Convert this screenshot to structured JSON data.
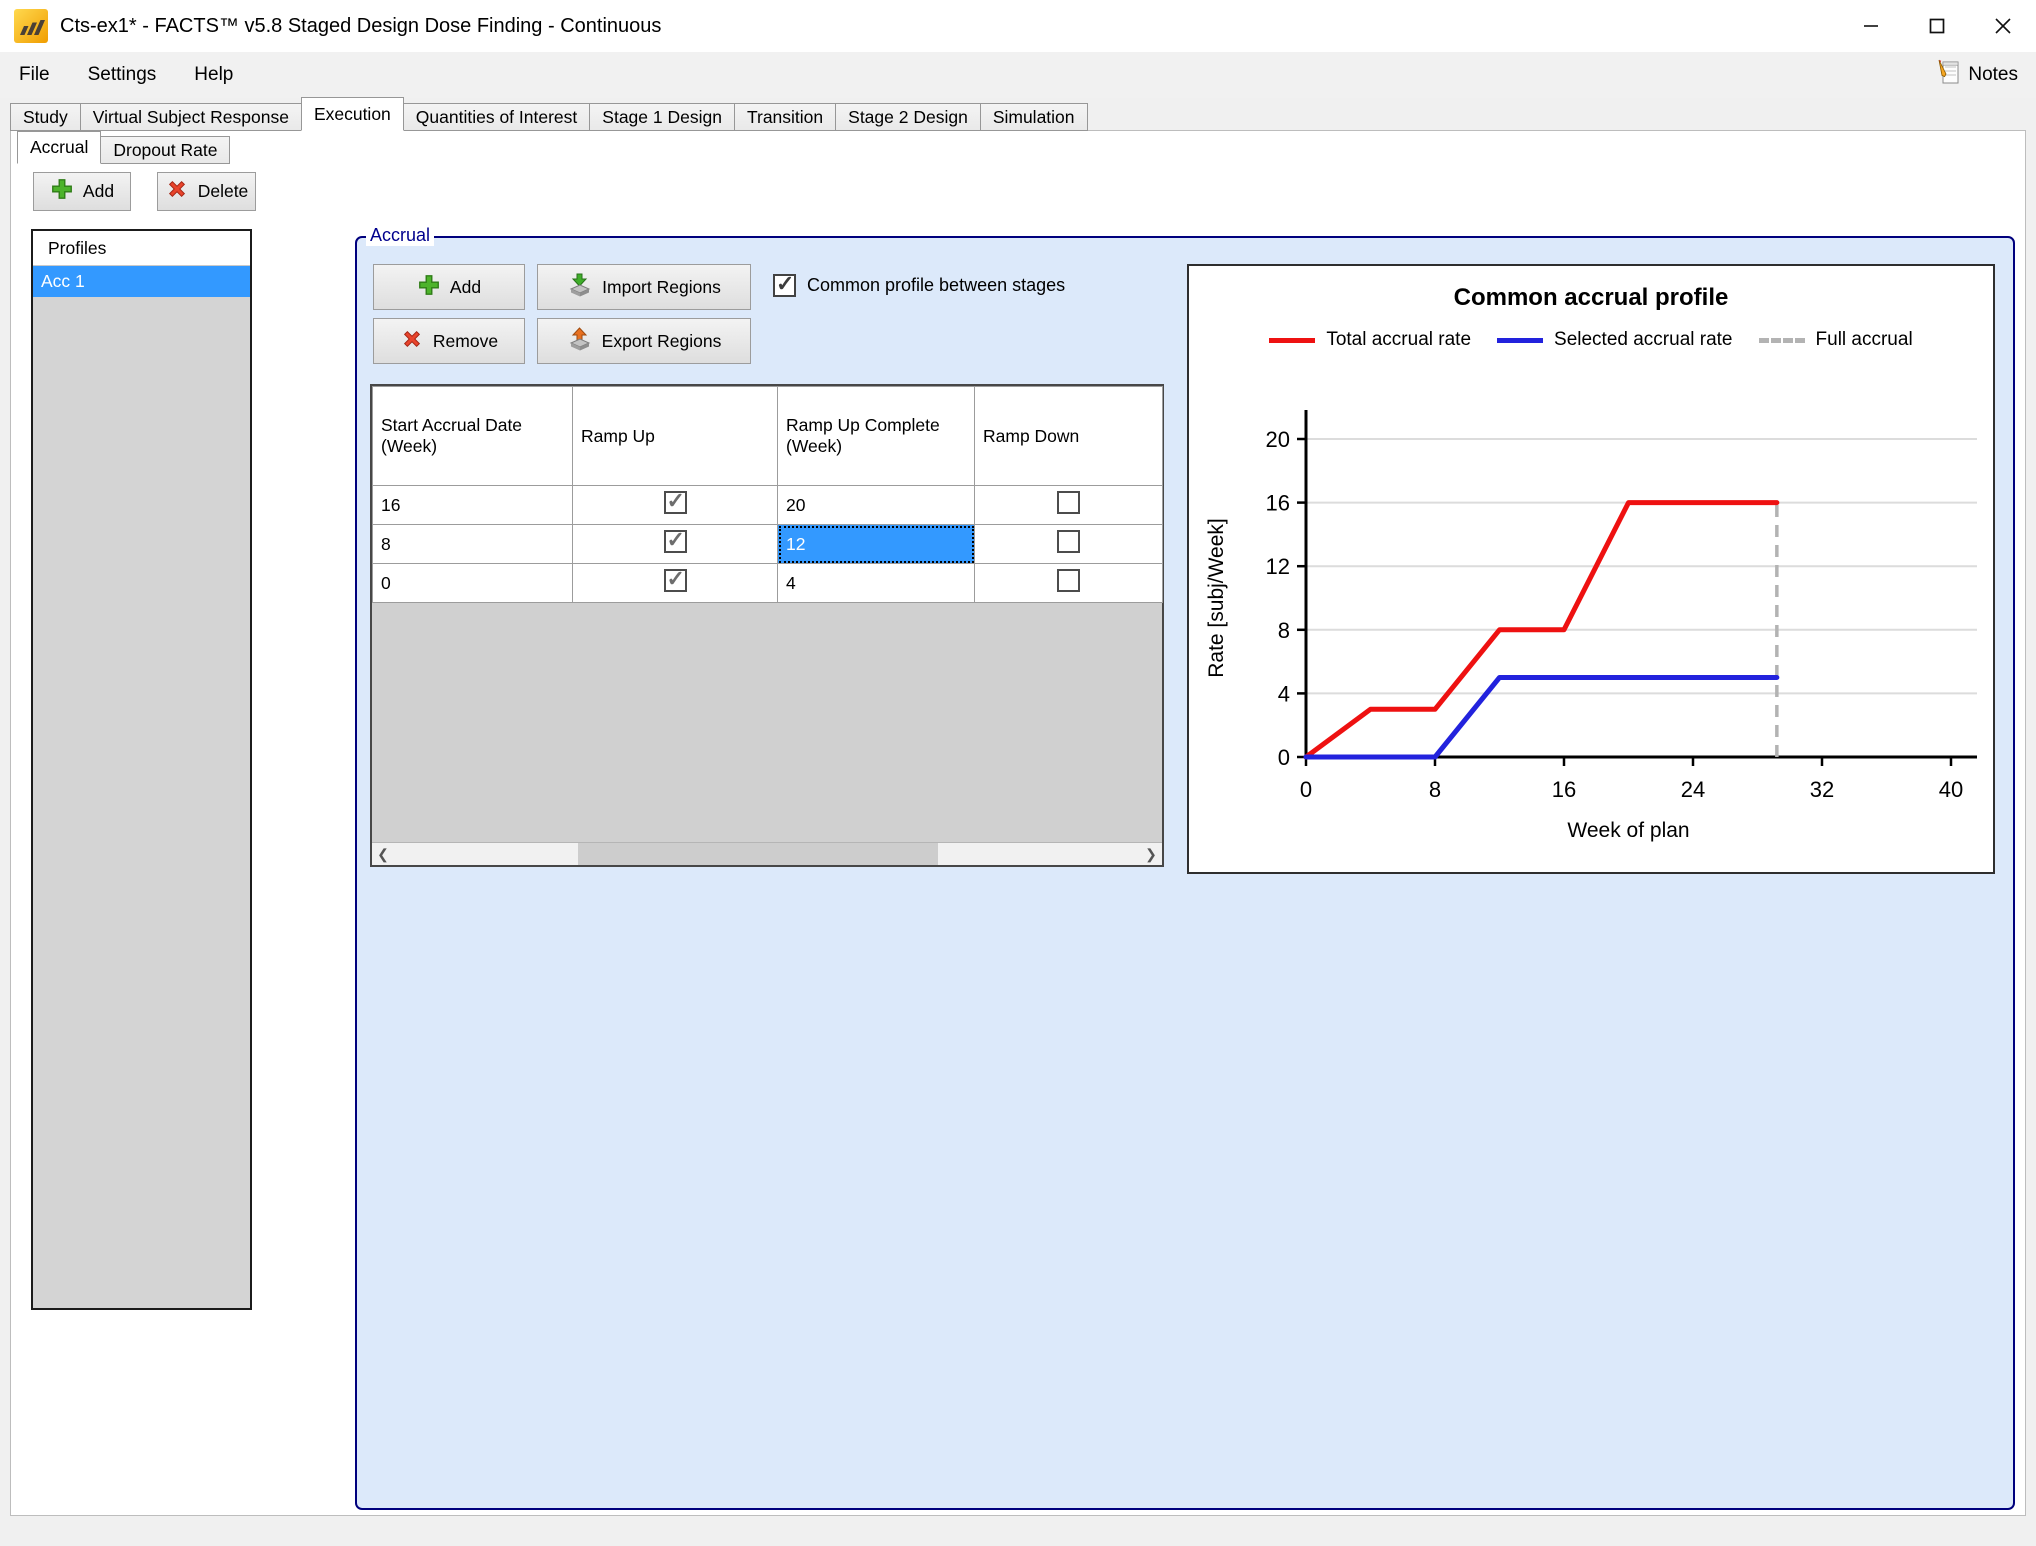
{
  "window": {
    "title": "Cts-ex1* - FACTS™ v5.8 Staged Design Dose Finding - Continuous"
  },
  "menu": {
    "items": [
      {
        "label": "File"
      },
      {
        "label": "Settings"
      },
      {
        "label": "Help"
      }
    ],
    "notes_label": "Notes"
  },
  "tabs": {
    "items": [
      {
        "label": "Study",
        "selected": false
      },
      {
        "label": "Virtual Subject Response",
        "selected": false
      },
      {
        "label": "Execution",
        "selected": true
      },
      {
        "label": "Quantities of Interest",
        "selected": false
      },
      {
        "label": "Stage 1 Design",
        "selected": false
      },
      {
        "label": "Transition",
        "selected": false
      },
      {
        "label": "Stage 2 Design",
        "selected": false
      },
      {
        "label": "Simulation",
        "selected": false
      }
    ]
  },
  "subtabs": {
    "items": [
      {
        "label": "Accrual",
        "selected": true
      },
      {
        "label": "Dropout Rate",
        "selected": false
      }
    ]
  },
  "profiles": {
    "add_label": "Add",
    "delete_label": "Delete",
    "header": "Profiles",
    "items": [
      {
        "label": "Acc 1",
        "selected": true
      }
    ]
  },
  "accrual": {
    "group_title": "Accrual",
    "add_label": "Add",
    "remove_label": "Remove",
    "import_label": "Import Regions",
    "export_label": "Export Regions",
    "common_profile": {
      "label": "Common profile between stages",
      "checked": true
    },
    "table": {
      "columns": [
        "Start Accrual Date (Week)",
        "Ramp Up",
        "Ramp Up Complete (Week)",
        "Ramp Down"
      ],
      "rows": [
        {
          "start": "16",
          "ramp_up": true,
          "complete": "20",
          "ramp_down": false,
          "complete_selected": false
        },
        {
          "start": "8",
          "ramp_up": true,
          "complete": "12",
          "ramp_down": false,
          "complete_selected": true
        },
        {
          "start": "0",
          "ramp_up": true,
          "complete": "4",
          "ramp_down": false,
          "complete_selected": false
        }
      ]
    }
  },
  "icons": {
    "scroll_left": "❮",
    "scroll_right": "❯"
  },
  "chart_data": {
    "type": "line",
    "title": "Common accrual profile",
    "xlabel": "Week of plan",
    "ylabel": "Rate [subj/Week]",
    "xlim": [
      0,
      40
    ],
    "ylim": [
      0,
      20
    ],
    "xticks": [
      0,
      8,
      16,
      24,
      32,
      40
    ],
    "yticks": [
      0,
      4,
      8,
      12,
      16,
      20
    ],
    "grid": "horizontal-only",
    "legend_position": "top",
    "legend": [
      "Total accrual rate",
      "Selected accrual rate",
      "Full accrual"
    ],
    "series": [
      {
        "name": "Total accrual rate",
        "color": "#ee1111",
        "points": [
          [
            0,
            0
          ],
          [
            4,
            3
          ],
          [
            8,
            3
          ],
          [
            12,
            8
          ],
          [
            16,
            8
          ],
          [
            20,
            16
          ],
          [
            29.2,
            16
          ]
        ]
      },
      {
        "name": "Selected accrual rate",
        "color": "#2222dd",
        "points": [
          [
            0,
            0
          ],
          [
            8,
            0
          ],
          [
            12,
            5
          ],
          [
            29.2,
            5
          ]
        ]
      }
    ],
    "full_accrual": {
      "name": "Full accrual",
      "week": 29.2,
      "color": "#b3b3b3",
      "style": "dashed"
    }
  },
  "colors": {
    "selection": "#3399ff",
    "groupbox_bg": "#dce9fa",
    "groupbox_border": "#00007d"
  }
}
